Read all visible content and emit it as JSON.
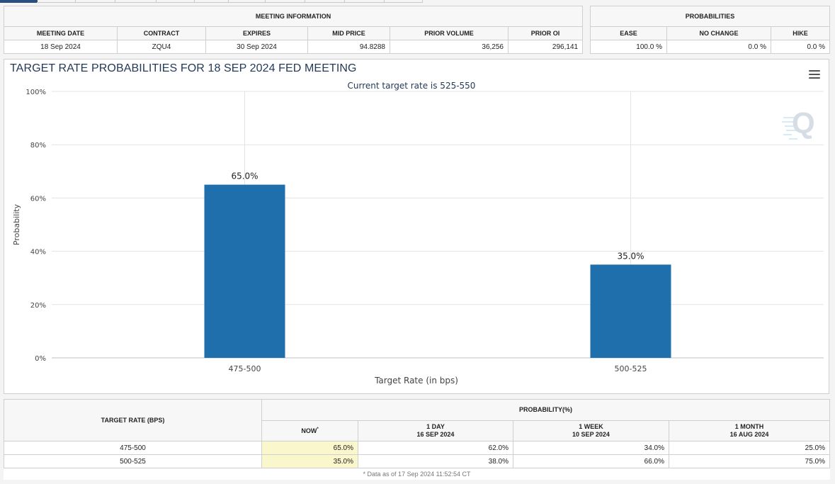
{
  "meeting_info": {
    "caption": "MEETING INFORMATION",
    "headers": [
      "MEETING DATE",
      "CONTRACT",
      "EXPIRES",
      "MID PRICE",
      "PRIOR VOLUME",
      "PRIOR OI"
    ],
    "values": [
      "18 Sep 2024",
      "ZQU4",
      "30 Sep 2024",
      "94.8288",
      "36,256",
      "296,141"
    ]
  },
  "probabilities": {
    "caption": "PROBABILITIES",
    "headers": [
      "EASE",
      "NO CHANGE",
      "HIKE"
    ],
    "values": [
      "100.0 %",
      "0.0 %",
      "0.0 %"
    ]
  },
  "chart_data": {
    "type": "bar",
    "title": "TARGET RATE PROBABILITIES FOR 18 SEP 2024 FED MEETING",
    "subtitle": "Current target rate is 525-550",
    "xlabel": "Target Rate (in bps)",
    "ylabel": "Probability",
    "categories": [
      "475-500",
      "500-525"
    ],
    "values": [
      65.0,
      35.0
    ],
    "data_labels": [
      "65.0%",
      "35.0%"
    ],
    "ylim": [
      0,
      100
    ],
    "yticks": [
      0,
      20,
      40,
      60,
      80,
      100
    ],
    "ytick_labels": [
      "0%",
      "20%",
      "40%",
      "60%",
      "80%",
      "100%"
    ],
    "grid": true,
    "legend": "none",
    "bar_color": "#1f6fad"
  },
  "history": {
    "target_rate_header": "TARGET RATE (BPS)",
    "probability_header": "PROBABILITY(%)",
    "columns": [
      {
        "label": "NOW",
        "marker": "*",
        "date": ""
      },
      {
        "label": "1 DAY",
        "date": "16 SEP 2024"
      },
      {
        "label": "1 WEEK",
        "date": "10 SEP 2024"
      },
      {
        "label": "1 MONTH",
        "date": "16 AUG 2024"
      }
    ],
    "rows": [
      {
        "rate": "475-500",
        "values": [
          "65.0%",
          "62.0%",
          "34.0%",
          "25.0%"
        ]
      },
      {
        "rate": "500-525",
        "values": [
          "35.0%",
          "38.0%",
          "66.0%",
          "75.0%"
        ]
      }
    ],
    "note": "* Data as of 17 Sep 2024 11:52:54 CT"
  },
  "icons": {
    "menu": "hamburger-menu-icon",
    "watermark": "q-logo-watermark"
  }
}
